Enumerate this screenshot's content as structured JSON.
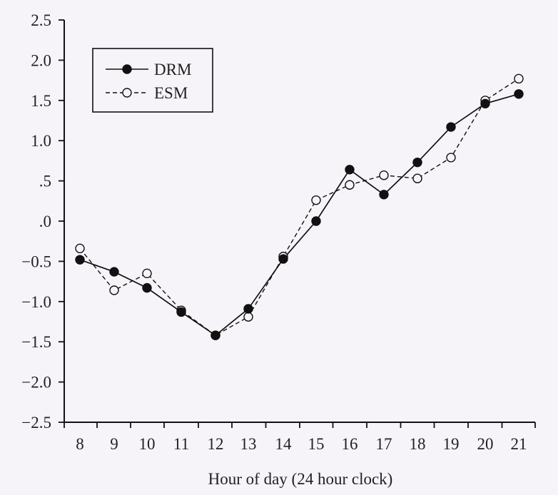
{
  "chart_data": {
    "type": "line",
    "title": "",
    "xlabel": "Hour of day (24 hour clock)",
    "ylabel": "",
    "x": [
      8,
      9,
      10,
      11,
      12,
      13,
      14,
      15,
      16,
      17,
      18,
      19,
      20,
      21
    ],
    "x_tick_labels": [
      "8",
      "9",
      "10",
      "11",
      "12",
      "13",
      "14",
      "15",
      "16",
      "17",
      "18",
      "19",
      "20",
      "21"
    ],
    "y_ticks": [
      2.5,
      2.0,
      1.5,
      1.0,
      0.5,
      0.0,
      -0.5,
      -1.0,
      -1.5,
      -2.0,
      -2.5
    ],
    "y_tick_labels": [
      "2.5",
      "2.0",
      "1.5",
      "1.0",
      ".5",
      ".0",
      "−0.5",
      "−1.0",
      "−1.5",
      "−2.0",
      "−2.5"
    ],
    "ylim": [
      -2.5,
      2.5
    ],
    "grid": false,
    "legend_position": "top-left",
    "series": [
      {
        "name": "DRM",
        "line_style": "solid",
        "marker": "filled-circle",
        "color": "#111111",
        "values": [
          -0.48,
          -0.63,
          -0.83,
          -1.13,
          -1.42,
          -1.09,
          -0.47,
          0.0,
          0.64,
          0.33,
          0.73,
          1.17,
          1.46,
          1.58
        ]
      },
      {
        "name": "ESM",
        "line_style": "dashed",
        "marker": "open-circle",
        "color": "#111111",
        "values": [
          -0.34,
          -0.86,
          -0.65,
          -1.11,
          -1.42,
          -1.19,
          -0.44,
          0.26,
          0.45,
          0.57,
          0.53,
          0.79,
          1.5,
          1.77
        ]
      }
    ]
  }
}
